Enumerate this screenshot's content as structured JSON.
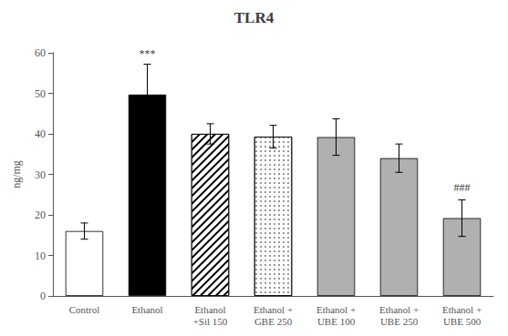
{
  "chart_data": {
    "type": "bar",
    "title": "TLR4",
    "ylabel": "ng/mg",
    "categories": [
      "Control",
      "Ethanol",
      "Ethanol\n+Sil 150",
      "Ethanol +\nGBE 250",
      "Ethanol +\nUBE 100",
      "Ethanol +\nUBE 250",
      "Ethanol +\nUBE 500"
    ],
    "values": [
      16.0,
      49.7,
      40.0,
      39.3,
      39.2,
      34.0,
      19.2
    ],
    "errors": [
      2.0,
      7.5,
      2.5,
      2.8,
      4.5,
      3.5,
      4.5
    ],
    "colors": [
      "white",
      "black",
      "white",
      "white",
      "#b0b0b0",
      "#b0b0b0",
      "#b0b0b0"
    ],
    "annotations": [
      {
        "category": "Ethanol",
        "text": "***",
        "y": 58.5
      },
      {
        "category": "Ethanol +\nUBE 500",
        "text": "###",
        "y": 25.5
      }
    ],
    "ylim": [
      0,
      60
    ],
    "yticks": [
      0,
      10,
      20,
      30,
      40,
      50,
      60
    ],
    "grid": false
  }
}
